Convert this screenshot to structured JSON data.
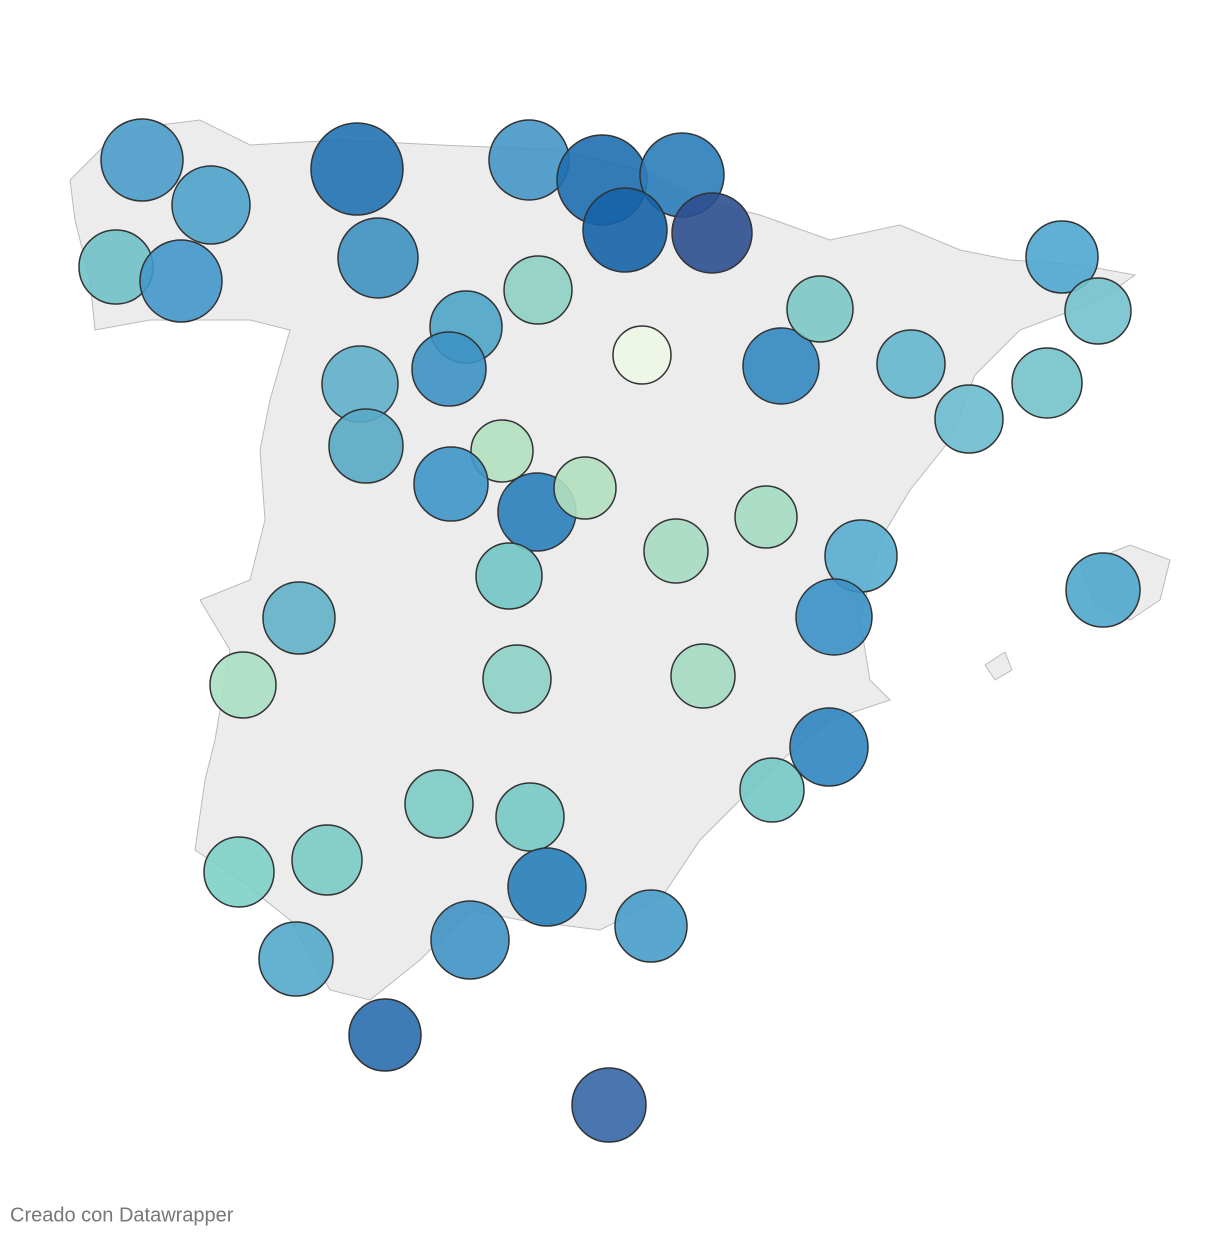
{
  "footer": {
    "credit": "Creado con Datawrapper"
  }
}
